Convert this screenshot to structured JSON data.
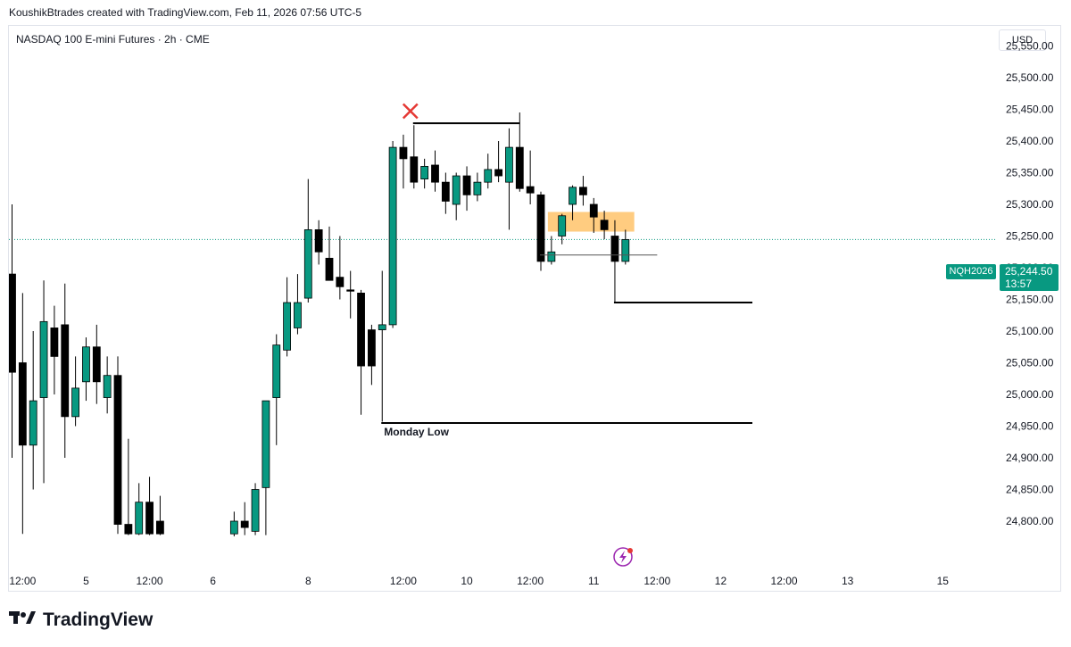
{
  "header": {
    "attribution": "KoushikBtrades created with TradingView.com, Feb 11, 2026 07:56 UTC-5",
    "symbol_line": "NASDAQ 100 E-mini Futures · 2h · CME",
    "currency": "USD"
  },
  "last_price": {
    "ticker": "NQH2026",
    "price": "25,244.50",
    "countdown": "13:57",
    "value": 25244.5,
    "color": "#089981"
  },
  "footer": {
    "brand": "TradingView",
    "logo_icon": "tradingview-logo-icon"
  },
  "colors": {
    "up": "#089981",
    "down": "#000000",
    "zone": "#ffcc80",
    "marker": "#e53935"
  },
  "chart_data": {
    "type": "candlestick",
    "title": "NASDAQ 100 E-mini Futures · 2h · CME",
    "ylim": [
      24775,
      25625
    ],
    "y_ticks": [
      {
        "value": 25550,
        "label": "25,550.00"
      },
      {
        "value": 25500,
        "label": "25,500.00"
      },
      {
        "value": 25450,
        "label": "25,450.00"
      },
      {
        "value": 25400,
        "label": "25,400.00"
      },
      {
        "value": 25350,
        "label": "25,350.00"
      },
      {
        "value": 25300,
        "label": "25,300.00"
      },
      {
        "value": 25250,
        "label": "25,250.00"
      },
      {
        "value": 25200,
        "label": "25,200.00"
      },
      {
        "value": 25150,
        "label": "25,150.00"
      },
      {
        "value": 25100,
        "label": "25,100.00"
      },
      {
        "value": 25050,
        "label": "25,050.00"
      },
      {
        "value": 25000,
        "label": "25,000.00"
      },
      {
        "value": 24950,
        "label": "24,950.00"
      },
      {
        "value": 24900,
        "label": "24,900.00"
      },
      {
        "value": 24850,
        "label": "24,850.00"
      },
      {
        "value": 24800,
        "label": "24,800.00"
      }
    ],
    "x_ticks": [
      {
        "bar": 1,
        "label": "12:00"
      },
      {
        "bar": 7,
        "label": "5"
      },
      {
        "bar": 13,
        "label": "12:00"
      },
      {
        "bar": 19,
        "label": "6"
      },
      {
        "bar": 28,
        "label": "8"
      },
      {
        "bar": 37,
        "label": "12:00"
      },
      {
        "bar": 43,
        "label": "10"
      },
      {
        "bar": 49,
        "label": "12:00"
      },
      {
        "bar": 55,
        "label": "11"
      },
      {
        "bar": 61,
        "label": "12:00"
      },
      {
        "bar": 67,
        "label": "12"
      },
      {
        "bar": 73,
        "label": "12:00"
      },
      {
        "bar": 79,
        "label": "13"
      },
      {
        "bar": 88,
        "label": "15"
      }
    ],
    "candles": [
      {
        "i": 0,
        "o": 25190,
        "h": 25300,
        "l": 24900,
        "c": 25035
      },
      {
        "i": 1,
        "o": 25050,
        "h": 25160,
        "l": 24780,
        "c": 24920
      },
      {
        "i": 2,
        "o": 24920,
        "h": 25100,
        "l": 24850,
        "c": 24990
      },
      {
        "i": 3,
        "o": 24995,
        "h": 25180,
        "l": 24860,
        "c": 25115
      },
      {
        "i": 4,
        "o": 25105,
        "h": 25140,
        "l": 25000,
        "c": 25060
      },
      {
        "i": 5,
        "o": 25110,
        "h": 25175,
        "l": 24900,
        "c": 24965
      },
      {
        "i": 6,
        "o": 24965,
        "h": 25060,
        "l": 24950,
        "c": 25010
      },
      {
        "i": 7,
        "o": 25020,
        "h": 25090,
        "l": 24990,
        "c": 25075
      },
      {
        "i": 8,
        "o": 25075,
        "h": 25110,
        "l": 24985,
        "c": 25020
      },
      {
        "i": 9,
        "o": 24995,
        "h": 25060,
        "l": 24970,
        "c": 25030
      },
      {
        "i": 10,
        "o": 25030,
        "h": 25060,
        "l": 24780,
        "c": 24795
      },
      {
        "i": 11,
        "o": 24795,
        "h": 24930,
        "l": 24778,
        "c": 24780
      },
      {
        "i": 12,
        "o": 24780,
        "h": 24860,
        "l": 24778,
        "c": 24830
      },
      {
        "i": 13,
        "o": 24830,
        "h": 24870,
        "l": 24778,
        "c": 24780
      },
      {
        "i": 14,
        "o": 24800,
        "h": 24840,
        "l": 24778,
        "c": 24780
      },
      {
        "i": 21,
        "o": 24780,
        "h": 24815,
        "l": 24776,
        "c": 24800
      },
      {
        "i": 22,
        "o": 24800,
        "h": 24830,
        "l": 24778,
        "c": 24790
      },
      {
        "i": 23,
        "o": 24784,
        "h": 24860,
        "l": 24778,
        "c": 24850
      },
      {
        "i": 24,
        "o": 24853,
        "h": 24990,
        "l": 24778,
        "c": 24990
      },
      {
        "i": 25,
        "o": 24995,
        "h": 25095,
        "l": 24920,
        "c": 25078
      },
      {
        "i": 26,
        "o": 25070,
        "h": 25185,
        "l": 25060,
        "c": 25145
      },
      {
        "i": 27,
        "o": 25105,
        "h": 25190,
        "l": 25095,
        "c": 25145
      },
      {
        "i": 28,
        "o": 25152,
        "h": 25340,
        "l": 25145,
        "c": 25260
      },
      {
        "i": 29,
        "o": 25260,
        "h": 25275,
        "l": 25205,
        "c": 25225
      },
      {
        "i": 30,
        "o": 25215,
        "h": 25265,
        "l": 25180,
        "c": 25180
      },
      {
        "i": 31,
        "o": 25185,
        "h": 25250,
        "l": 25150,
        "c": 25170
      },
      {
        "i": 32,
        "o": 25165,
        "h": 25195,
        "l": 25120,
        "c": 25163
      },
      {
        "i": 33,
        "o": 25160,
        "h": 25165,
        "l": 24968,
        "c": 25045
      },
      {
        "i": 34,
        "o": 25102,
        "h": 25110,
        "l": 25015,
        "c": 25045
      },
      {
        "i": 35,
        "o": 25102,
        "h": 25195,
        "l": 24957,
        "c": 25110
      },
      {
        "i": 36,
        "o": 25110,
        "h": 25400,
        "l": 25105,
        "c": 25390
      },
      {
        "i": 37,
        "o": 25390,
        "h": 25410,
        "l": 25325,
        "c": 25372
      },
      {
        "i": 38,
        "o": 25375,
        "h": 25425,
        "l": 25325,
        "c": 25335
      },
      {
        "i": 39,
        "o": 25340,
        "h": 25372,
        "l": 25325,
        "c": 25360
      },
      {
        "i": 40,
        "o": 25362,
        "h": 25385,
        "l": 25320,
        "c": 25335
      },
      {
        "i": 41,
        "o": 25335,
        "h": 25350,
        "l": 25285,
        "c": 25305
      },
      {
        "i": 42,
        "o": 25300,
        "h": 25350,
        "l": 25275,
        "c": 25345
      },
      {
        "i": 43,
        "o": 25345,
        "h": 25360,
        "l": 25290,
        "c": 25315
      },
      {
        "i": 44,
        "o": 25315,
        "h": 25350,
        "l": 25305,
        "c": 25335
      },
      {
        "i": 45,
        "o": 25335,
        "h": 25380,
        "l": 25325,
        "c": 25355
      },
      {
        "i": 46,
        "o": 25355,
        "h": 25400,
        "l": 25335,
        "c": 25345
      },
      {
        "i": 47,
        "o": 25335,
        "h": 25420,
        "l": 25260,
        "c": 25390
      },
      {
        "i": 48,
        "o": 25390,
        "h": 25445,
        "l": 25320,
        "c": 25325
      },
      {
        "i": 49,
        "o": 25328,
        "h": 25385,
        "l": 25300,
        "c": 25318
      },
      {
        "i": 50,
        "o": 25315,
        "h": 25320,
        "l": 25195,
        "c": 25210
      },
      {
        "i": 51,
        "o": 25210,
        "h": 25250,
        "l": 25205,
        "c": 25225
      },
      {
        "i": 52,
        "o": 25250,
        "h": 25285,
        "l": 25237,
        "c": 25282
      },
      {
        "i": 53,
        "o": 25300,
        "h": 25330,
        "l": 25275,
        "c": 25327
      },
      {
        "i": 54,
        "o": 25327,
        "h": 25345,
        "l": 25298,
        "c": 25315
      },
      {
        "i": 55,
        "o": 25300,
        "h": 25310,
        "l": 25255,
        "c": 25280
      },
      {
        "i": 56,
        "o": 25275,
        "h": 25290,
        "l": 25245,
        "c": 25260
      },
      {
        "i": 57,
        "o": 25250,
        "h": 25275,
        "l": 25145,
        "c": 25210
      },
      {
        "i": 58,
        "o": 25210,
        "h": 25260,
        "l": 25205,
        "c": 25244.5
      }
    ],
    "annotations": [
      {
        "type": "x-marker",
        "bar": 38,
        "value": 25450
      },
      {
        "type": "hline",
        "from_bar": 38,
        "to_bar": 48,
        "value": 25428
      },
      {
        "type": "hline",
        "from_bar": 50,
        "to_bar": 61,
        "value": 25220
      },
      {
        "type": "hline",
        "from_bar": 57,
        "to_bar": 70,
        "value": 25145
      },
      {
        "type": "hline",
        "from_bar": 35,
        "to_bar": 70,
        "value": 24955,
        "label": "Monday Low"
      },
      {
        "type": "zone",
        "from_bar": 51,
        "to_bar": 59,
        "top": 25288,
        "bottom": 25257
      },
      {
        "type": "price-line",
        "value": 25244.5
      }
    ],
    "grid": false,
    "legend": "none"
  }
}
